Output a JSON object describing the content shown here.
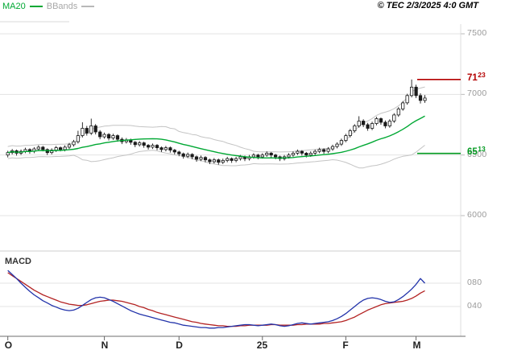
{
  "header": {
    "legend": [
      {
        "label": "MA20",
        "color": "#00a833"
      },
      {
        "label": "BBands",
        "color": "#a8a8a8"
      }
    ],
    "copyright": "© TEC 2/3/2025 4:0 GMT"
  },
  "y_axis": {
    "ticks": [
      {
        "label": "7500",
        "value": 7500
      },
      {
        "label": "7000",
        "value": 7000
      },
      {
        "label": "6500",
        "value": 6500
      },
      {
        "label": "6000",
        "value": 6000
      }
    ]
  },
  "x_axis": {
    "ticks": [
      {
        "label": "O",
        "index": 0
      },
      {
        "label": "N",
        "index": 22
      },
      {
        "label": "D",
        "index": 39
      },
      {
        "label": "25",
        "index": 58
      },
      {
        "label": "F",
        "index": 77
      },
      {
        "label": "M",
        "index": 93
      }
    ]
  },
  "levels": [
    {
      "name": "resistance",
      "label_int": "71",
      "label_dec": "23",
      "price": 7123,
      "color": "#b30000"
    },
    {
      "name": "support",
      "label_int": "65",
      "label_dec": "13",
      "price": 6513,
      "color": "#00991f"
    }
  ],
  "macd_panel": {
    "label": "MACD",
    "yticks": [
      {
        "label": "080",
        "value": 0.8
      },
      {
        "label": "040",
        "value": 0.4
      }
    ],
    "macd_color": "#2233aa",
    "signal_color": "#b32222"
  },
  "chart_data": {
    "type": "candlestick",
    "title": "",
    "ylim": [
      5700,
      7580
    ],
    "xlabel": "",
    "ylabel": "",
    "indicators": {
      "ma_period": 20,
      "bollinger_period": 20
    },
    "colors": {
      "ma": "#00a833",
      "bands": "#c4c4c4",
      "candle": "#1a1a1a",
      "resistance": "#b30000",
      "support": "#00991f"
    },
    "candles": [
      [
        6500,
        6535,
        6480,
        6520
      ],
      [
        6520,
        6550,
        6505,
        6535
      ],
      [
        6535,
        6545,
        6495,
        6515
      ],
      [
        6515,
        6545,
        6500,
        6530
      ],
      [
        6530,
        6560,
        6515,
        6545
      ],
      [
        6545,
        6555,
        6510,
        6530
      ],
      [
        6530,
        6565,
        6515,
        6550
      ],
      [
        6550,
        6580,
        6535,
        6565
      ],
      [
        6565,
        6575,
        6530,
        6545
      ],
      [
        6545,
        6555,
        6500,
        6520
      ],
      [
        6520,
        6555,
        6505,
        6540
      ],
      [
        6540,
        6575,
        6525,
        6560
      ],
      [
        6560,
        6570,
        6530,
        6545
      ],
      [
        6545,
        6580,
        6530,
        6565
      ],
      [
        6565,
        6600,
        6550,
        6585
      ],
      [
        6585,
        6625,
        6570,
        6610
      ],
      [
        6610,
        6700,
        6595,
        6660
      ],
      [
        6660,
        6770,
        6645,
        6720
      ],
      [
        6720,
        6740,
        6660,
        6680
      ],
      [
        6680,
        6800,
        6665,
        6740
      ],
      [
        6740,
        6755,
        6670,
        6690
      ],
      [
        6690,
        6705,
        6630,
        6650
      ],
      [
        6650,
        6685,
        6635,
        6670
      ],
      [
        6670,
        6680,
        6620,
        6640
      ],
      [
        6640,
        6675,
        6625,
        6660
      ],
      [
        6660,
        6670,
        6610,
        6630
      ],
      [
        6630,
        6645,
        6590,
        6610
      ],
      [
        6610,
        6640,
        6595,
        6625
      ],
      [
        6625,
        6635,
        6585,
        6605
      ],
      [
        6605,
        6615,
        6565,
        6585
      ],
      [
        6585,
        6615,
        6570,
        6600
      ],
      [
        6600,
        6610,
        6560,
        6580
      ],
      [
        6580,
        6590,
        6545,
        6565
      ],
      [
        6565,
        6595,
        6550,
        6580
      ],
      [
        6580,
        6590,
        6540,
        6560
      ],
      [
        6560,
        6570,
        6525,
        6545
      ],
      [
        6545,
        6575,
        6530,
        6560
      ],
      [
        6560,
        6570,
        6520,
        6540
      ],
      [
        6540,
        6550,
        6505,
        6525
      ],
      [
        6525,
        6535,
        6490,
        6510
      ],
      [
        6510,
        6520,
        6470,
        6490
      ],
      [
        6490,
        6520,
        6475,
        6505
      ],
      [
        6505,
        6515,
        6465,
        6485
      ],
      [
        6485,
        6495,
        6445,
        6465
      ],
      [
        6465,
        6495,
        6450,
        6480
      ],
      [
        6480,
        6490,
        6440,
        6460
      ],
      [
        6460,
        6470,
        6425,
        6445
      ],
      [
        6445,
        6475,
        6430,
        6460
      ],
      [
        6460,
        6470,
        6420,
        6440
      ],
      [
        6440,
        6470,
        6425,
        6455
      ],
      [
        6455,
        6485,
        6440,
        6470
      ],
      [
        6470,
        6480,
        6435,
        6455
      ],
      [
        6455,
        6485,
        6440,
        6470
      ],
      [
        6470,
        6500,
        6455,
        6485
      ],
      [
        6485,
        6495,
        6450,
        6470
      ],
      [
        6470,
        6500,
        6455,
        6485
      ],
      [
        6485,
        6515,
        6470,
        6500
      ],
      [
        6500,
        6510,
        6465,
        6485
      ],
      [
        6485,
        6515,
        6470,
        6500
      ],
      [
        6500,
        6530,
        6485,
        6515
      ],
      [
        6515,
        6525,
        6480,
        6500
      ],
      [
        6500,
        6510,
        6465,
        6485
      ],
      [
        6485,
        6495,
        6450,
        6470
      ],
      [
        6470,
        6500,
        6455,
        6485
      ],
      [
        6485,
        6515,
        6470,
        6500
      ],
      [
        6500,
        6530,
        6485,
        6515
      ],
      [
        6515,
        6545,
        6500,
        6530
      ],
      [
        6530,
        6540,
        6495,
        6515
      ],
      [
        6515,
        6525,
        6480,
        6500
      ],
      [
        6500,
        6530,
        6485,
        6515
      ],
      [
        6515,
        6545,
        6500,
        6530
      ],
      [
        6530,
        6560,
        6515,
        6545
      ],
      [
        6545,
        6555,
        6510,
        6530
      ],
      [
        6530,
        6565,
        6515,
        6550
      ],
      [
        6550,
        6585,
        6535,
        6570
      ],
      [
        6570,
        6605,
        6555,
        6590
      ],
      [
        6590,
        6635,
        6575,
        6620
      ],
      [
        6620,
        6675,
        6605,
        6660
      ],
      [
        6660,
        6715,
        6645,
        6700
      ],
      [
        6700,
        6755,
        6685,
        6740
      ],
      [
        6740,
        6820,
        6725,
        6780
      ],
      [
        6780,
        6795,
        6730,
        6750
      ],
      [
        6750,
        6765,
        6700,
        6720
      ],
      [
        6720,
        6775,
        6705,
        6760
      ],
      [
        6760,
        6815,
        6745,
        6800
      ],
      [
        6800,
        6810,
        6750,
        6770
      ],
      [
        6770,
        6785,
        6720,
        6740
      ],
      [
        6740,
        6795,
        6725,
        6780
      ],
      [
        6780,
        6845,
        6765,
        6830
      ],
      [
        6830,
        6895,
        6815,
        6880
      ],
      [
        6880,
        6945,
        6865,
        6930
      ],
      [
        6930,
        7005,
        6915,
        6990
      ],
      [
        6990,
        7123,
        6975,
        7060
      ],
      [
        7060,
        7080,
        6970,
        6990
      ],
      [
        6990,
        7010,
        6925,
        6950
      ],
      [
        6950,
        6995,
        6930,
        6970
      ]
    ],
    "macd": [
      1.02,
      0.95,
      0.88,
      0.8,
      0.73,
      0.66,
      0.6,
      0.55,
      0.5,
      0.46,
      0.42,
      0.39,
      0.36,
      0.34,
      0.33,
      0.34,
      0.37,
      0.42,
      0.47,
      0.52,
      0.55,
      0.56,
      0.55,
      0.52,
      0.49,
      0.45,
      0.41,
      0.37,
      0.33,
      0.3,
      0.27,
      0.25,
      0.23,
      0.21,
      0.19,
      0.17,
      0.15,
      0.13,
      0.12,
      0.1,
      0.08,
      0.07,
      0.06,
      0.05,
      0.04,
      0.04,
      0.03,
      0.03,
      0.04,
      0.04,
      0.05,
      0.06,
      0.07,
      0.08,
      0.09,
      0.09,
      0.08,
      0.07,
      0.08,
      0.09,
      0.1,
      0.09,
      0.07,
      0.06,
      0.07,
      0.09,
      0.11,
      0.12,
      0.11,
      0.1,
      0.11,
      0.12,
      0.13,
      0.14,
      0.16,
      0.19,
      0.23,
      0.28,
      0.34,
      0.4,
      0.46,
      0.51,
      0.54,
      0.55,
      0.54,
      0.52,
      0.49,
      0.47,
      0.48,
      0.52,
      0.57,
      0.63,
      0.7,
      0.78,
      0.88,
      0.8
    ],
    "macd_signal": [
      0.98,
      0.93,
      0.88,
      0.83,
      0.78,
      0.73,
      0.68,
      0.64,
      0.6,
      0.57,
      0.54,
      0.51,
      0.48,
      0.46,
      0.44,
      0.43,
      0.42,
      0.42,
      0.43,
      0.45,
      0.47,
      0.49,
      0.5,
      0.51,
      0.51,
      0.5,
      0.49,
      0.47,
      0.45,
      0.43,
      0.4,
      0.38,
      0.35,
      0.33,
      0.3,
      0.28,
      0.26,
      0.24,
      0.22,
      0.2,
      0.18,
      0.16,
      0.14,
      0.13,
      0.11,
      0.1,
      0.09,
      0.08,
      0.07,
      0.07,
      0.06,
      0.06,
      0.06,
      0.07,
      0.07,
      0.08,
      0.08,
      0.08,
      0.08,
      0.08,
      0.09,
      0.09,
      0.08,
      0.08,
      0.08,
      0.08,
      0.09,
      0.09,
      0.1,
      0.1,
      0.1,
      0.1,
      0.11,
      0.11,
      0.12,
      0.13,
      0.14,
      0.16,
      0.19,
      0.22,
      0.26,
      0.3,
      0.34,
      0.37,
      0.4,
      0.43,
      0.45,
      0.46,
      0.47,
      0.48,
      0.49,
      0.51,
      0.54,
      0.58,
      0.63,
      0.67
    ]
  }
}
